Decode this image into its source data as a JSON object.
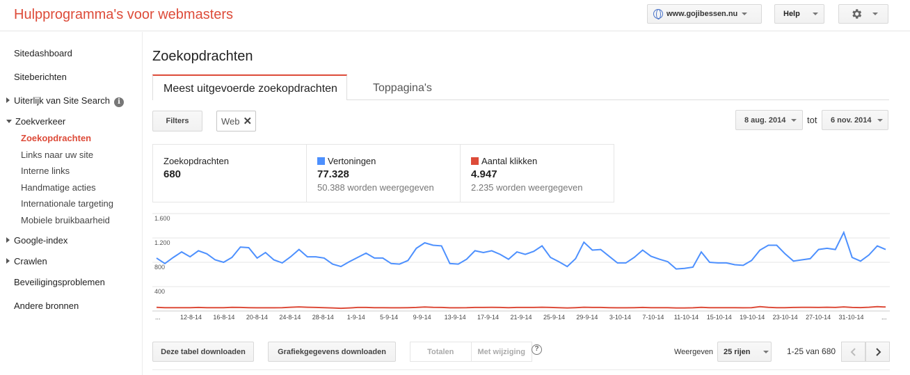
{
  "header": {
    "title": "Hulpprogramma's voor webmasters",
    "site": "www.gojibessen.nu",
    "help_label": "Help"
  },
  "sidebar": {
    "items": [
      {
        "label": "Sitedashboard"
      },
      {
        "label": "Siteberichten"
      },
      {
        "label": "Uiterlijk van Site Search"
      },
      {
        "label": "Zoekverkeer"
      },
      {
        "label": "Zoekopdrachten"
      },
      {
        "label": "Links naar uw site"
      },
      {
        "label": "Interne links"
      },
      {
        "label": "Handmatige acties"
      },
      {
        "label": "Internationale targeting"
      },
      {
        "label": "Mobiele bruikbaarheid"
      },
      {
        "label": "Google-index"
      },
      {
        "label": "Crawlen"
      },
      {
        "label": "Beveiligingsproblemen"
      },
      {
        "label": "Andere bronnen"
      }
    ]
  },
  "main": {
    "title": "Zoekopdrachten",
    "tabs": [
      {
        "label": "Meest uitgevoerde zoekopdrachten"
      },
      {
        "label": "Toppagina's"
      }
    ],
    "filters_label": "Filters",
    "filter_chip": "Web",
    "date_from": "8 aug. 2014",
    "date_to_label": "tot",
    "date_to": "6 nov. 2014"
  },
  "metrics": [
    {
      "label": "Zoekopdrachten",
      "value": "680",
      "sub": ""
    },
    {
      "label": "Vertoningen",
      "value": "77.328",
      "sub": "50.388 worden weergegeven",
      "color": "#4d90fe"
    },
    {
      "label": "Aantal klikken",
      "value": "4.947",
      "sub": "2.235 worden weergegeven",
      "color": "#dd4b39"
    }
  ],
  "chart_data": {
    "type": "line",
    "x_ticks": [
      "...",
      "12-8-14",
      "16-8-14",
      "20-8-14",
      "24-8-14",
      "28-8-14",
      "1-9-14",
      "5-9-14",
      "9-9-14",
      "13-9-14",
      "17-9-14",
      "21-9-14",
      "25-9-14",
      "29-9-14",
      "3-10-14",
      "7-10-14",
      "11-10-14",
      "15-10-14",
      "19-10-14",
      "23-10-14",
      "27-10-14",
      "31-10-14",
      "..."
    ],
    "y_ticks": [
      "1.600",
      "1.200",
      "800",
      "400"
    ],
    "ylim": [
      0,
      1600
    ],
    "series": [
      {
        "name": "Vertoningen",
        "color": "#4d90fe",
        "values": [
          870,
          780,
          880,
          970,
          890,
          990,
          940,
          840,
          800,
          880,
          1050,
          1040,
          870,
          960,
          840,
          790,
          890,
          1010,
          890,
          890,
          870,
          770,
          730,
          810,
          880,
          950,
          870,
          870,
          780,
          770,
          830,
          1030,
          1120,
          1080,
          1070,
          780,
          770,
          850,
          990,
          960,
          990,
          930,
          850,
          970,
          930,
          980,
          1070,
          880,
          810,
          730,
          860,
          1130,
          1000,
          1010,
          900,
          790,
          790,
          880,
          1000,
          900,
          850,
          810,
          690,
          700,
          720,
          970,
          800,
          790,
          790,
          760,
          750,
          830,
          1000,
          1080,
          1080,
          940,
          820,
          840,
          860,
          1010,
          1030,
          1010,
          1290,
          880,
          820,
          920,
          1070,
          1010
        ]
      },
      {
        "name": "Aantal klikken",
        "color": "#dd4b39",
        "values": [
          60,
          55,
          55,
          55,
          55,
          58,
          55,
          55,
          55,
          60,
          58,
          55,
          52,
          52,
          52,
          55,
          62,
          68,
          62,
          58,
          55,
          50,
          45,
          50,
          58,
          58,
          55,
          55,
          52,
          52,
          55,
          58,
          66,
          60,
          58,
          52,
          52,
          54,
          58,
          58,
          60,
          58,
          55,
          58,
          58,
          58,
          62,
          58,
          55,
          50,
          55,
          62,
          58,
          58,
          55,
          52,
          52,
          55,
          58,
          55,
          54,
          54,
          50,
          50,
          52,
          60,
          55,
          54,
          54,
          54,
          52,
          55,
          72,
          60,
          55,
          55,
          58,
          60,
          60,
          58,
          62,
          58,
          68,
          58,
          56,
          62,
          72,
          65
        ]
      }
    ]
  },
  "footer": {
    "download_table": "Deze tabel downloaden",
    "download_chart": "Grafiekgegevens downloaden",
    "seg_totals": "Totalen",
    "seg_change": "Met wijziging",
    "help_q": "?",
    "show_label": "Weergeven",
    "rows_option": "25 rijen",
    "range": "1-25 van 680"
  }
}
